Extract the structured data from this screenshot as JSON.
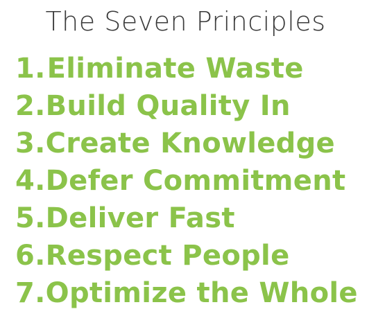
{
  "title": "The Seven Principles",
  "principles": [
    {
      "number": "1.",
      "text": "Eliminate Waste"
    },
    {
      "number": "2.",
      "text": "Build Quality In"
    },
    {
      "number": "3.",
      "text": "Create Knowledge"
    },
    {
      "number": "4.",
      "text": "Defer Commitment"
    },
    {
      "number": "5.",
      "text": "Deliver Fast"
    },
    {
      "number": "6.",
      "text": "Respect People"
    },
    {
      "number": "7.",
      "text": "Optimize the Whole"
    }
  ],
  "colors": {
    "title": "#3a3a3a",
    "principle": "#8bc34a",
    "background": "#ffffff"
  }
}
